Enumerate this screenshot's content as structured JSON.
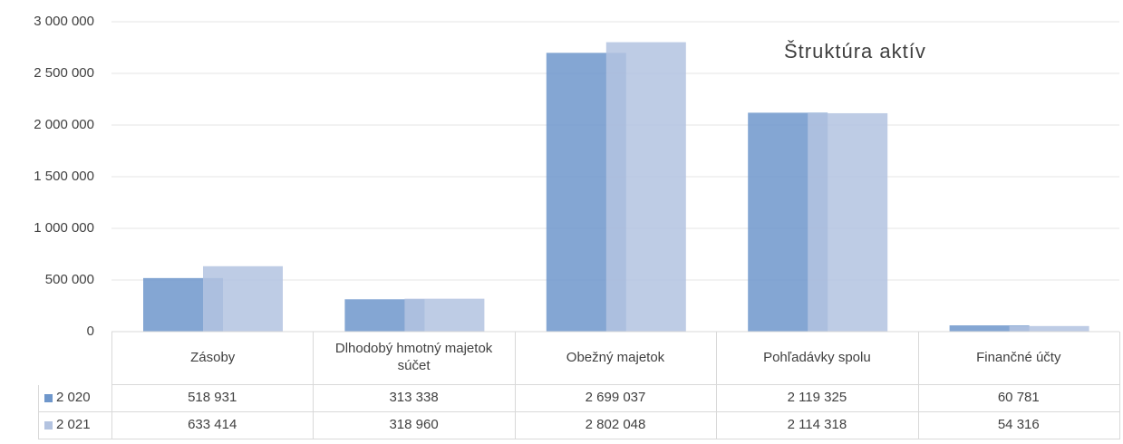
{
  "chart_data": {
    "type": "bar",
    "title": "Štruktúra aktív",
    "categories": [
      "Zásoby",
      "Dlhodobý hmotný majetok súčet",
      "Obežný majetok",
      "Pohľadávky spolu",
      "Finančné účty"
    ],
    "series": [
      {
        "name": "2 020",
        "color": "#6f97cb",
        "values": [
          518931,
          313338,
          2699037,
          2119325,
          60781
        ],
        "value_labels": [
          "518 931",
          "313 338",
          "2 699 037",
          "2 119 325",
          "60 781"
        ]
      },
      {
        "name": "2 021",
        "color": "#b3c3e0",
        "values": [
          633414,
          318960,
          2802048,
          2114318,
          54316
        ],
        "value_labels": [
          "633 414",
          "318 960",
          "2 802 048",
          "2 114 318",
          "54 316"
        ]
      }
    ],
    "ylim": [
      0,
      3000000
    ],
    "yticks": [
      0,
      {
        "value": 500000,
        "label": "500 000"
      },
      {
        "value": 1000000,
        "label": "1 000 000"
      },
      {
        "value": 1500000,
        "label": "1 500 000"
      },
      {
        "value": 2000000,
        "label": "2 000 000"
      },
      {
        "value": 2500000,
        "label": "2 500 000"
      },
      {
        "value": 3000000,
        "label": "3 000 000"
      }
    ],
    "grid": true
  }
}
